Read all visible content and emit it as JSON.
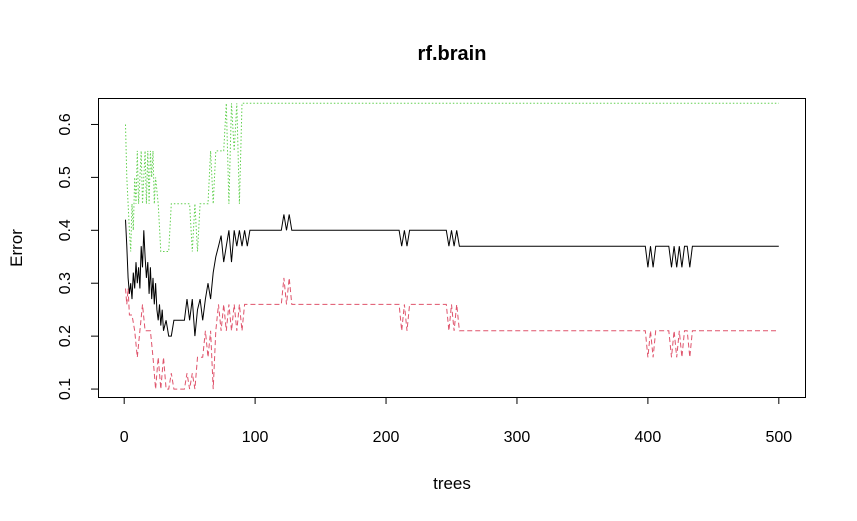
{
  "chart_data": {
    "type": "line",
    "title": "rf.brain",
    "xlabel": "trees",
    "ylabel": "Error",
    "xlim": [
      -20,
      520
    ],
    "ylim": [
      0.085,
      0.65
    ],
    "xticks": [
      0,
      100,
      200,
      300,
      400,
      500
    ],
    "yticks": [
      0.1,
      0.2,
      0.3,
      0.4,
      0.5,
      0.6
    ],
    "grid": false,
    "legend": "none",
    "series": [
      {
        "color": "#000000",
        "dash": "solid",
        "points": [
          [
            1,
            0.42
          ],
          [
            2,
            0.37
          ],
          [
            3,
            0.31
          ],
          [
            4,
            0.28
          ],
          [
            5,
            0.3
          ],
          [
            6,
            0.27
          ],
          [
            7,
            0.32
          ],
          [
            8,
            0.29
          ],
          [
            9,
            0.34
          ],
          [
            10,
            0.3
          ],
          [
            11,
            0.33
          ],
          [
            12,
            0.29
          ],
          [
            13,
            0.37
          ],
          [
            14,
            0.33
          ],
          [
            15,
            0.4
          ],
          [
            16,
            0.35
          ],
          [
            17,
            0.31
          ],
          [
            18,
            0.34
          ],
          [
            19,
            0.28
          ],
          [
            20,
            0.33
          ],
          [
            21,
            0.27
          ],
          [
            22,
            0.31
          ],
          [
            23,
            0.26
          ],
          [
            24,
            0.3
          ],
          [
            25,
            0.25
          ],
          [
            26,
            0.23
          ],
          [
            27,
            0.26
          ],
          [
            28,
            0.22
          ],
          [
            29,
            0.25
          ],
          [
            30,
            0.21
          ],
          [
            32,
            0.23
          ],
          [
            34,
            0.2
          ],
          [
            36,
            0.2
          ],
          [
            38,
            0.23
          ],
          [
            40,
            0.23
          ],
          [
            42,
            0.23
          ],
          [
            44,
            0.23
          ],
          [
            46,
            0.23
          ],
          [
            48,
            0.27
          ],
          [
            50,
            0.23
          ],
          [
            52,
            0.27
          ],
          [
            54,
            0.2
          ],
          [
            56,
            0.25
          ],
          [
            58,
            0.27
          ],
          [
            60,
            0.23
          ],
          [
            62,
            0.27
          ],
          [
            64,
            0.3
          ],
          [
            66,
            0.27
          ],
          [
            68,
            0.32
          ],
          [
            70,
            0.35
          ],
          [
            72,
            0.37
          ],
          [
            74,
            0.39
          ],
          [
            76,
            0.34
          ],
          [
            78,
            0.37
          ],
          [
            80,
            0.4
          ],
          [
            82,
            0.34
          ],
          [
            84,
            0.4
          ],
          [
            86,
            0.37
          ],
          [
            88,
            0.4
          ],
          [
            90,
            0.37
          ],
          [
            92,
            0.4
          ],
          [
            94,
            0.37
          ],
          [
            96,
            0.4
          ],
          [
            100,
            0.4
          ],
          [
            120,
            0.4
          ],
          [
            122,
            0.43
          ],
          [
            124,
            0.4
          ],
          [
            126,
            0.43
          ],
          [
            128,
            0.4
          ],
          [
            210,
            0.4
          ],
          [
            212,
            0.37
          ],
          [
            214,
            0.4
          ],
          [
            216,
            0.37
          ],
          [
            218,
            0.4
          ],
          [
            246,
            0.4
          ],
          [
            248,
            0.37
          ],
          [
            250,
            0.4
          ],
          [
            252,
            0.37
          ],
          [
            254,
            0.4
          ],
          [
            256,
            0.37
          ],
          [
            398,
            0.37
          ],
          [
            400,
            0.33
          ],
          [
            402,
            0.37
          ],
          [
            404,
            0.33
          ],
          [
            406,
            0.37
          ],
          [
            416,
            0.37
          ],
          [
            418,
            0.33
          ],
          [
            420,
            0.37
          ],
          [
            422,
            0.33
          ],
          [
            424,
            0.37
          ],
          [
            426,
            0.33
          ],
          [
            428,
            0.37
          ],
          [
            430,
            0.37
          ],
          [
            432,
            0.33
          ],
          [
            434,
            0.37
          ],
          [
            500,
            0.37
          ]
        ]
      },
      {
        "color": "#DF536B",
        "dash": "dashed",
        "points": [
          [
            1,
            0.29
          ],
          [
            2,
            0.26
          ],
          [
            3,
            0.29
          ],
          [
            4,
            0.24
          ],
          [
            6,
            0.24
          ],
          [
            8,
            0.21
          ],
          [
            10,
            0.16
          ],
          [
            12,
            0.21
          ],
          [
            14,
            0.26
          ],
          [
            16,
            0.21
          ],
          [
            20,
            0.21
          ],
          [
            22,
            0.16
          ],
          [
            24,
            0.1
          ],
          [
            26,
            0.16
          ],
          [
            28,
            0.1
          ],
          [
            30,
            0.16
          ],
          [
            32,
            0.1
          ],
          [
            34,
            0.1
          ],
          [
            36,
            0.13
          ],
          [
            38,
            0.1
          ],
          [
            40,
            0.1
          ],
          [
            46,
            0.1
          ],
          [
            48,
            0.13
          ],
          [
            50,
            0.1
          ],
          [
            52,
            0.13
          ],
          [
            54,
            0.1
          ],
          [
            56,
            0.16
          ],
          [
            60,
            0.16
          ],
          [
            62,
            0.21
          ],
          [
            64,
            0.16
          ],
          [
            66,
            0.21
          ],
          [
            68,
            0.1
          ],
          [
            70,
            0.21
          ],
          [
            72,
            0.26
          ],
          [
            74,
            0.21
          ],
          [
            76,
            0.26
          ],
          [
            78,
            0.21
          ],
          [
            80,
            0.26
          ],
          [
            82,
            0.21
          ],
          [
            84,
            0.26
          ],
          [
            86,
            0.21
          ],
          [
            88,
            0.26
          ],
          [
            90,
            0.21
          ],
          [
            92,
            0.26
          ],
          [
            94,
            0.26
          ],
          [
            120,
            0.26
          ],
          [
            122,
            0.31
          ],
          [
            124,
            0.26
          ],
          [
            126,
            0.31
          ],
          [
            128,
            0.26
          ],
          [
            210,
            0.26
          ],
          [
            212,
            0.21
          ],
          [
            214,
            0.26
          ],
          [
            216,
            0.21
          ],
          [
            218,
            0.26
          ],
          [
            246,
            0.26
          ],
          [
            248,
            0.21
          ],
          [
            250,
            0.26
          ],
          [
            252,
            0.21
          ],
          [
            254,
            0.26
          ],
          [
            256,
            0.21
          ],
          [
            398,
            0.21
          ],
          [
            400,
            0.16
          ],
          [
            402,
            0.21
          ],
          [
            404,
            0.16
          ],
          [
            406,
            0.21
          ],
          [
            416,
            0.21
          ],
          [
            418,
            0.16
          ],
          [
            420,
            0.21
          ],
          [
            422,
            0.16
          ],
          [
            424,
            0.21
          ],
          [
            426,
            0.16
          ],
          [
            428,
            0.21
          ],
          [
            430,
            0.21
          ],
          [
            432,
            0.16
          ],
          [
            434,
            0.21
          ],
          [
            500,
            0.21
          ]
        ]
      },
      {
        "color": "#61D04F",
        "dash": "dotted",
        "points": [
          [
            1,
            0.6
          ],
          [
            2,
            0.5
          ],
          [
            3,
            0.45
          ],
          [
            4,
            0.4
          ],
          [
            5,
            0.36
          ],
          [
            6,
            0.45
          ],
          [
            7,
            0.4
          ],
          [
            8,
            0.5
          ],
          [
            9,
            0.45
          ],
          [
            10,
            0.55
          ],
          [
            11,
            0.45
          ],
          [
            12,
            0.5
          ],
          [
            13,
            0.55
          ],
          [
            14,
            0.45
          ],
          [
            15,
            0.5
          ],
          [
            16,
            0.55
          ],
          [
            17,
            0.45
          ],
          [
            18,
            0.55
          ],
          [
            19,
            0.45
          ],
          [
            20,
            0.55
          ],
          [
            21,
            0.5
          ],
          [
            22,
            0.55
          ],
          [
            23,
            0.45
          ],
          [
            24,
            0.5
          ],
          [
            26,
            0.45
          ],
          [
            28,
            0.36
          ],
          [
            30,
            0.36
          ],
          [
            32,
            0.36
          ],
          [
            34,
            0.36
          ],
          [
            36,
            0.45
          ],
          [
            40,
            0.45
          ],
          [
            50,
            0.45
          ],
          [
            52,
            0.36
          ],
          [
            54,
            0.45
          ],
          [
            56,
            0.36
          ],
          [
            58,
            0.45
          ],
          [
            60,
            0.45
          ],
          [
            62,
            0.45
          ],
          [
            64,
            0.45
          ],
          [
            66,
            0.55
          ],
          [
            68,
            0.45
          ],
          [
            70,
            0.55
          ],
          [
            72,
            0.55
          ],
          [
            76,
            0.55
          ],
          [
            78,
            0.64
          ],
          [
            80,
            0.45
          ],
          [
            82,
            0.64
          ],
          [
            84,
            0.55
          ],
          [
            86,
            0.64
          ],
          [
            88,
            0.45
          ],
          [
            90,
            0.64
          ],
          [
            94,
            0.64
          ],
          [
            500,
            0.64
          ]
        ]
      }
    ]
  }
}
